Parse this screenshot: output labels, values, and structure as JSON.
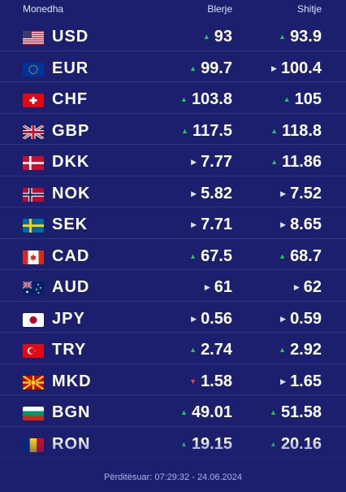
{
  "header": {
    "currency": "Monedha",
    "buy": "Blerje",
    "sell": "Shitje"
  },
  "rows": [
    {
      "code": "USD",
      "flag": "us-flag",
      "buy": "93",
      "buy_trend": "up",
      "sell": "93.9",
      "sell_trend": "up"
    },
    {
      "code": "EUR",
      "flag": "eu-flag",
      "buy": "99.7",
      "buy_trend": "up",
      "sell": "100.4",
      "sell_trend": "same"
    },
    {
      "code": "CHF",
      "flag": "ch-flag",
      "buy": "103.8",
      "buy_trend": "up",
      "sell": "105",
      "sell_trend": "up"
    },
    {
      "code": "GBP",
      "flag": "gb-flag",
      "buy": "117.5",
      "buy_trend": "up",
      "sell": "118.8",
      "sell_trend": "up"
    },
    {
      "code": "DKK",
      "flag": "dk-flag",
      "buy": "7.77",
      "buy_trend": "same",
      "sell": "11.86",
      "sell_trend": "up"
    },
    {
      "code": "NOK",
      "flag": "no-flag",
      "buy": "5.82",
      "buy_trend": "same",
      "sell": "7.52",
      "sell_trend": "same"
    },
    {
      "code": "SEK",
      "flag": "se-flag",
      "buy": "7.71",
      "buy_trend": "same",
      "sell": "8.65",
      "sell_trend": "same"
    },
    {
      "code": "CAD",
      "flag": "ca-flag",
      "buy": "67.5",
      "buy_trend": "up",
      "sell": "68.7",
      "sell_trend": "up"
    },
    {
      "code": "AUD",
      "flag": "au-flag",
      "buy": "61",
      "buy_trend": "same",
      "sell": "62",
      "sell_trend": "same"
    },
    {
      "code": "JPY",
      "flag": "jp-flag",
      "buy": "0.56",
      "buy_trend": "same",
      "sell": "0.59",
      "sell_trend": "same"
    },
    {
      "code": "TRY",
      "flag": "tr-flag",
      "buy": "2.74",
      "buy_trend": "up",
      "sell": "2.92",
      "sell_trend": "up"
    },
    {
      "code": "MKD",
      "flag": "mk-flag",
      "buy": "1.58",
      "buy_trend": "down",
      "sell": "1.65",
      "sell_trend": "same"
    },
    {
      "code": "BGN",
      "flag": "bg-flag",
      "buy": "49.01",
      "buy_trend": "up",
      "sell": "51.58",
      "sell_trend": "up"
    },
    {
      "code": "RON",
      "flag": "ro-flag",
      "buy": "19.15",
      "buy_trend": "up",
      "sell": "20.16",
      "sell_trend": "up"
    }
  ],
  "footer": {
    "updated": "Përditësuar: 07:29:32 - 24.06.2024"
  },
  "colors": {
    "background": "#1b1f6e",
    "up": "#21c55d",
    "down": "#ef4444",
    "same": "#dfe3ff"
  }
}
